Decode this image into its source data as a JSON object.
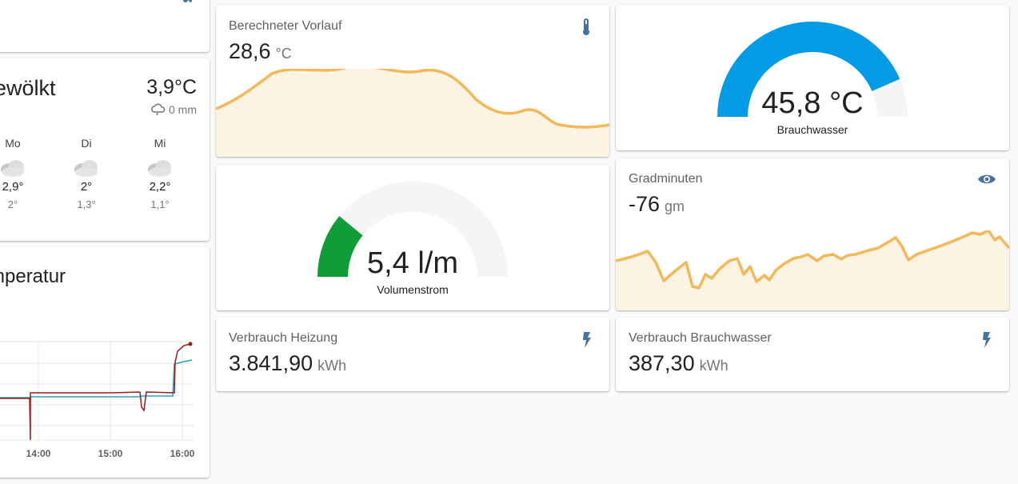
{
  "weather": {
    "condition": "bewölkt",
    "temperature": "3,9°C",
    "precipitation": "0 mm",
    "forecast": [
      {
        "day": "Mo",
        "high": "2,9°",
        "low": "2°",
        "icon": "cloudy-icon"
      },
      {
        "day": "Di",
        "high": "2°",
        "low": "1,3°",
        "icon": "cloudy-icon"
      },
      {
        "day": "Mi",
        "high": "2,2°",
        "low": "1,1°",
        "icon": "cloudy-icon"
      }
    ]
  },
  "history": {
    "title": "mperatur",
    "x_ticks": [
      "14:00",
      "15:00",
      "16:00"
    ]
  },
  "vorlauf": {
    "name": "Berechneter Vorlauf",
    "value": "28,6",
    "unit": "°C",
    "icon": "thermometer-icon"
  },
  "brauchwasser_gauge": {
    "value": "45,8 °C",
    "label": "Brauchwasser",
    "fraction": 0.87,
    "color": "#039be5"
  },
  "volumenstrom_gauge": {
    "value": "5,4 l/m",
    "label": "Volumenstrom",
    "fraction": 0.22,
    "color": "#0f9d38"
  },
  "gradminuten": {
    "name": "Gradminuten",
    "value": "-76",
    "unit": "gm",
    "icon": "eye-icon"
  },
  "verbrauch_heizung": {
    "name": "Verbrauch Heizung",
    "value": "3.841,90",
    "unit": "kWh",
    "icon": "lightning-bolt-icon"
  },
  "verbrauch_brauchwasser": {
    "name": "Verbrauch Brauchwasser",
    "value": "387,30",
    "unit": "kWh",
    "icon": "lightning-bolt-icon"
  },
  "colors": {
    "accent_sparkline": "#f4b859",
    "sparkline_fill": "#fdf3e3",
    "icon": "#44739e",
    "gauge_track": "#f5f5f5"
  }
}
